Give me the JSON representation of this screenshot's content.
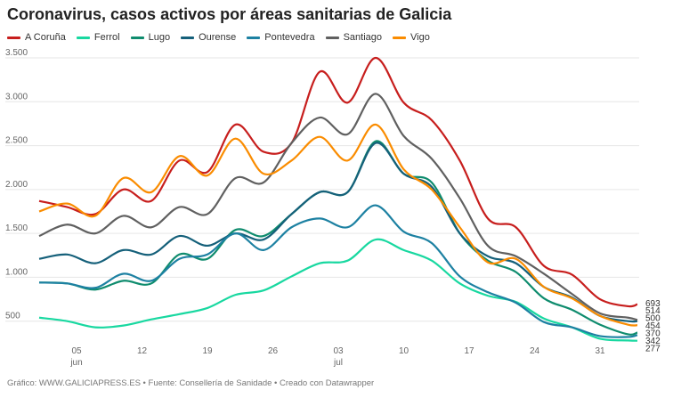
{
  "chart_data": {
    "type": "line",
    "title": "Coronavirus, casos activos por áreas sanitarias de Galicia",
    "x": [
      "2020-06-01",
      "2020-06-04",
      "2020-06-07",
      "2020-06-10",
      "2020-06-13",
      "2020-06-16",
      "2020-06-19",
      "2020-06-22",
      "2020-06-25",
      "2020-06-28",
      "2020-07-01",
      "2020-07-04",
      "2020-07-07",
      "2020-07-10",
      "2020-07-13",
      "2020-07-16",
      "2020-07-19",
      "2020-07-22",
      "2020-07-25",
      "2020-07-28",
      "2020-07-31",
      "2020-08-03",
      "2020-08-04"
    ],
    "series": [
      {
        "name": "A Coruña",
        "color": "#c71e1d",
        "values": [
          1870,
          1800,
          1720,
          2000,
          1870,
          2330,
          2200,
          2740,
          2430,
          2530,
          3340,
          2990,
          3500,
          2990,
          2790,
          2330,
          1670,
          1570,
          1130,
          1030,
          750,
          670,
          693
        ],
        "end_label": "693"
      },
      {
        "name": "Ferrol",
        "color": "#18d8a0",
        "values": [
          540,
          500,
          430,
          450,
          520,
          580,
          650,
          800,
          850,
          1010,
          1160,
          1190,
          1430,
          1310,
          1190,
          930,
          790,
          720,
          530,
          430,
          300,
          280,
          277
        ],
        "end_label": "277"
      },
      {
        "name": "Lugo",
        "color": "#0f8c6e",
        "values": [
          940,
          930,
          860,
          960,
          930,
          1260,
          1210,
          1540,
          1470,
          1720,
          1970,
          1970,
          2550,
          2180,
          2080,
          1500,
          1190,
          1060,
          760,
          630,
          460,
          350,
          370
        ],
        "end_label": "370"
      },
      {
        "name": "Ourense",
        "color": "#15607a",
        "values": [
          1210,
          1260,
          1160,
          1310,
          1260,
          1470,
          1360,
          1500,
          1430,
          1720,
          1970,
          1970,
          2530,
          2180,
          2030,
          1500,
          1240,
          1160,
          890,
          770,
          560,
          500,
          500
        ],
        "end_label": "500"
      },
      {
        "name": "Pontevedra",
        "color": "#1d81a2",
        "values": [
          940,
          930,
          880,
          1040,
          960,
          1210,
          1260,
          1500,
          1310,
          1570,
          1670,
          1570,
          1820,
          1520,
          1390,
          1010,
          830,
          710,
          490,
          430,
          330,
          320,
          342
        ],
        "end_label": "342"
      },
      {
        "name": "Santiago",
        "color": "#606060",
        "values": [
          1470,
          1600,
          1500,
          1700,
          1570,
          1800,
          1720,
          2130,
          2080,
          2530,
          2820,
          2630,
          3090,
          2610,
          2350,
          1900,
          1360,
          1240,
          1040,
          810,
          590,
          540,
          514
        ],
        "end_label": "514"
      },
      {
        "name": "Vigo",
        "color": "#fa8c00",
        "values": [
          1750,
          1840,
          1700,
          2130,
          1970,
          2380,
          2160,
          2580,
          2180,
          2330,
          2600,
          2330,
          2740,
          2230,
          2000,
          1570,
          1170,
          1210,
          890,
          760,
          560,
          460,
          454
        ],
        "end_label": "454"
      }
    ],
    "ylim": [
      500,
      3500
    ],
    "y_ticks": [
      500,
      1000,
      1500,
      2000,
      2500,
      3000,
      3500
    ],
    "y_tick_labels": [
      "500",
      "1.000",
      "1.500",
      "2.000",
      "2.500",
      "3.000",
      "3.500"
    ],
    "x_ticks": [
      {
        "date": "2020-06-05",
        "label": "05",
        "month": "jun"
      },
      {
        "date": "2020-06-12",
        "label": "12",
        "month": ""
      },
      {
        "date": "2020-06-19",
        "label": "19",
        "month": ""
      },
      {
        "date": "2020-06-26",
        "label": "26",
        "month": ""
      },
      {
        "date": "2020-07-03",
        "label": "03",
        "month": "jul"
      },
      {
        "date": "2020-07-10",
        "label": "10",
        "month": ""
      },
      {
        "date": "2020-07-17",
        "label": "17",
        "month": ""
      },
      {
        "date": "2020-07-24",
        "label": "24",
        "month": ""
      },
      {
        "date": "2020-07-31",
        "label": "31",
        "month": ""
      }
    ],
    "grid": true,
    "legend_placement": "top-left"
  },
  "footer": "Gráfico: WWW.GALICIAPRESS.ES • Fuente: Consellería de Sanidade • Creado con Datawrapper"
}
